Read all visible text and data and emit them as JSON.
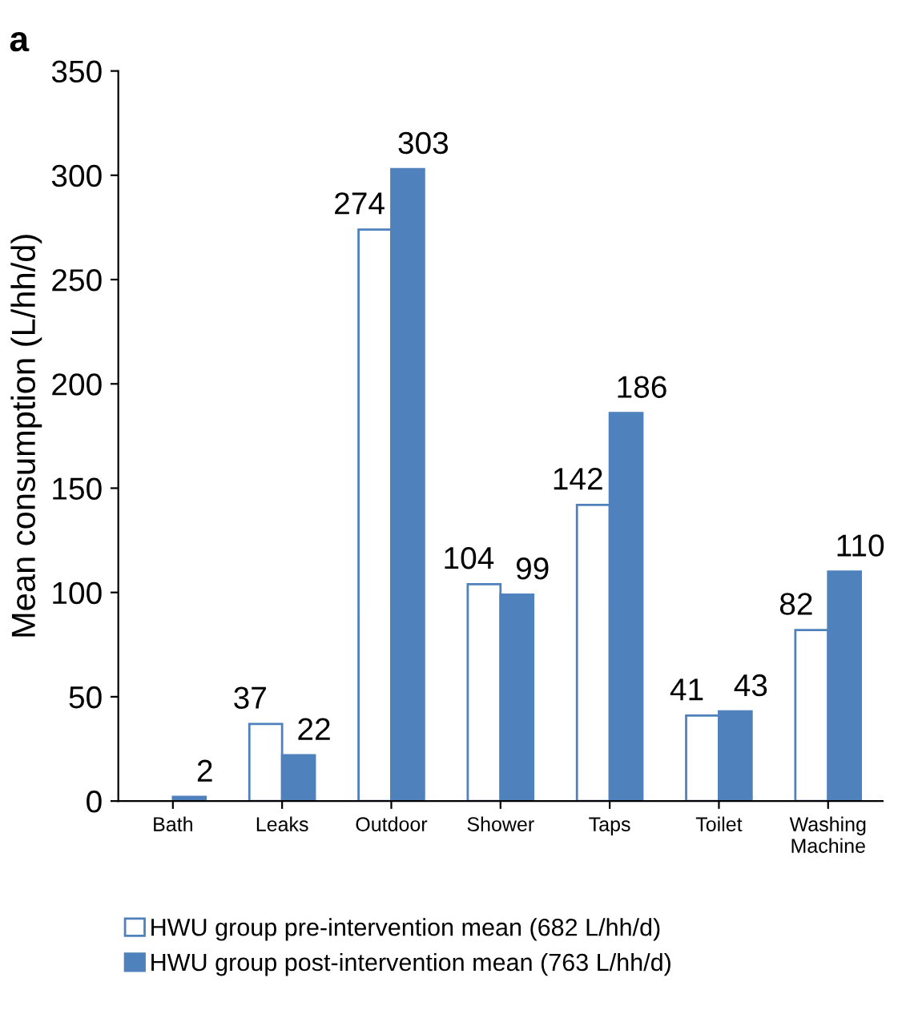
{
  "chart_data": {
    "type": "bar",
    "title": "a",
    "ylabel": "Mean consumption (L/hh/d)",
    "categories": [
      "Bath",
      "Leaks",
      "Outdoor",
      "Shower",
      "Taps",
      "Toilet",
      "Washing\nMachine"
    ],
    "series": [
      {
        "name": "HWU group pre-intervention mean (682 L/hh/d)",
        "color": "#ffffff",
        "values": [
          null,
          37,
          274,
          104,
          142,
          41,
          82
        ],
        "value_labels": [
          null,
          "37",
          "274",
          "104",
          "142",
          "41",
          "82"
        ]
      },
      {
        "name": "HWU group post-intervention mean (763 L/hh/d)",
        "color": "#4f81bd",
        "values": [
          2,
          22,
          303,
          99,
          186,
          43,
          110
        ],
        "value_labels": [
          "2",
          "22",
          "303",
          "99",
          "186",
          "43",
          "110"
        ]
      }
    ],
    "ylim": [
      0,
      350
    ],
    "yticks": [
      0,
      50,
      100,
      150,
      200,
      250,
      300,
      350
    ],
    "grid": false,
    "legend": "bottom"
  }
}
